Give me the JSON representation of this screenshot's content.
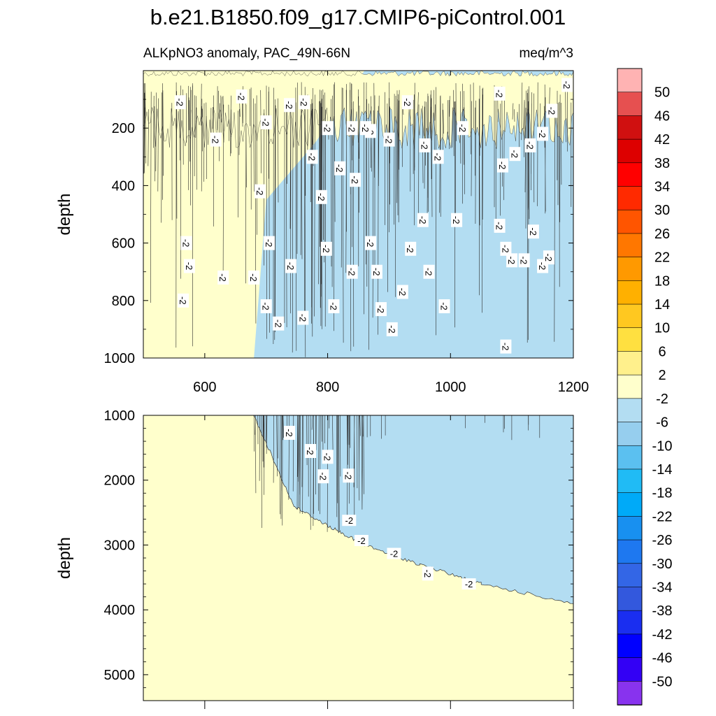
{
  "chart_data": {
    "type": "contour",
    "title": "b.e21.B1850.f09_g17.CMIP6-piControl.001",
    "subtitle_left": "ALKpNO3 anomaly, PAC_49N-66N",
    "subtitle_right": "meq/m^3",
    "contour_label": "-2",
    "upper_panel": {
      "ylabel": "depth",
      "xlim": [
        500,
        1200
      ],
      "ylim": [
        0,
        1000
      ],
      "xticks": [
        "600",
        "800",
        "1000",
        "1200"
      ],
      "yticks": [
        "200",
        "400",
        "600",
        "800",
        "1000"
      ],
      "boundary_x_at_top": 860,
      "boundary_x_at_bottom": 680
    },
    "lower_panel": {
      "ylabel": "depth",
      "xlim": [
        500,
        1200
      ],
      "ylim": [
        1000,
        5400
      ],
      "yticks": [
        "1000",
        "2000",
        "3000",
        "4000",
        "5000"
      ],
      "xticks": [
        "600",
        "800",
        "1000",
        "1200"
      ],
      "boundary": [
        {
          "x": 680,
          "depth": 1000
        },
        {
          "x": 745,
          "depth": 2400
        },
        {
          "x": 800,
          "depth": 2700
        },
        {
          "x": 860,
          "depth": 3000
        },
        {
          "x": 950,
          "depth": 3300
        },
        {
          "x": 1050,
          "depth": 3600
        },
        {
          "x": 1200,
          "depth": 3900
        }
      ]
    },
    "colorbar": {
      "levels": [
        "50",
        "46",
        "42",
        "38",
        "34",
        "30",
        "26",
        "22",
        "18",
        "14",
        "10",
        "6",
        "2",
        "-2",
        "-6",
        "-10",
        "-14",
        "-18",
        "-22",
        "-26",
        "-30",
        "-34",
        "-38",
        "-42",
        "-46",
        "-50"
      ],
      "colors": [
        "#FFB3B3",
        "#E65050",
        "#D01010",
        "#DD0000",
        "#FF0000",
        "#FF2A00",
        "#FF5500",
        "#FF7700",
        "#FF9900",
        "#FFB000",
        "#FFC820",
        "#FFE040",
        "#FFF08C",
        "#FFFFCC",
        "#B3DDF2",
        "#96CEEE",
        "#5BC0F0",
        "#20BBF5",
        "#00AAF8",
        "#1890F0",
        "#1E78F0",
        "#3366E6",
        "#3358DD",
        "#1A2EF0",
        "#0000FF",
        "#3300F5",
        "#8833EE"
      ],
      "positive_color": "#FFFFCC",
      "negative_color": "#B3DDF2"
    }
  }
}
